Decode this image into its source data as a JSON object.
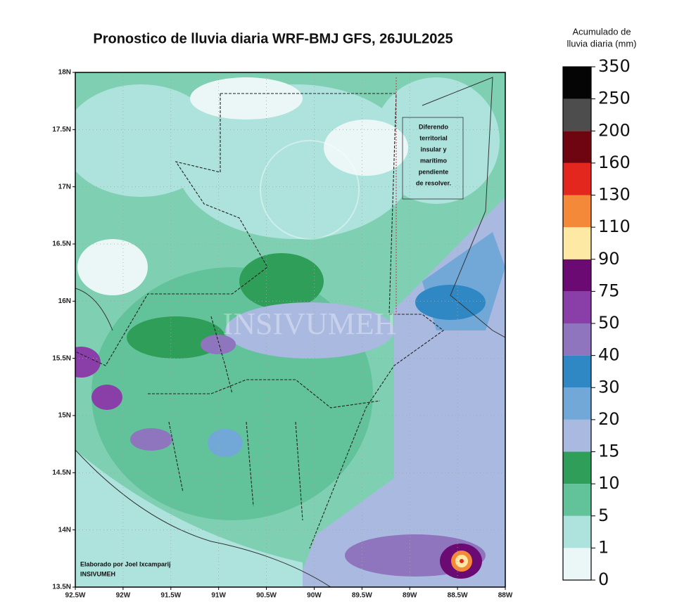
{
  "map": {
    "title": "Pronostico de lluvia diaria WRF-BMJ GFS,  26JUL2025",
    "xlim": [
      -92.5,
      -88
    ],
    "ylim": [
      13.5,
      18
    ],
    "xticks": [
      {
        "value": -92.5,
        "label": "92.5W"
      },
      {
        "value": -92,
        "label": "92W"
      },
      {
        "value": -91.5,
        "label": "91.5W"
      },
      {
        "value": -91,
        "label": "91W"
      },
      {
        "value": -90.5,
        "label": "90.5W"
      },
      {
        "value": -90,
        "label": "90W"
      },
      {
        "value": -89.5,
        "label": "89.5W"
      },
      {
        "value": -89,
        "label": "89W"
      },
      {
        "value": -88.5,
        "label": "88.5W"
      },
      {
        "value": -88,
        "label": "88W"
      }
    ],
    "yticks": [
      {
        "value": 13.5,
        "label": "13.5N"
      },
      {
        "value": 14,
        "label": "14N"
      },
      {
        "value": 14.5,
        "label": "14.5N"
      },
      {
        "value": 15,
        "label": "15N"
      },
      {
        "value": 15.5,
        "label": "15.5N"
      },
      {
        "value": 16,
        "label": "16N"
      },
      {
        "value": 16.5,
        "label": "16.5N"
      },
      {
        "value": 17,
        "label": "17N"
      },
      {
        "value": 17.5,
        "label": "17.5N"
      },
      {
        "value": 18,
        "label": "18N"
      }
    ],
    "grid": true,
    "annotation": [
      "Diferendo",
      "territorial",
      "insular y",
      "marítimo",
      "pendiente",
      "de resolver."
    ],
    "credit": [
      "Elaborado por Joel Ixcamparij",
      "INSIVUMEH"
    ],
    "watermark": "INSIVUMEH",
    "colorbar": {
      "title": [
        "Acumulado de",
        "lluvia diaria (mm)"
      ],
      "levels": [
        0,
        1,
        5,
        10,
        15,
        20,
        30,
        40,
        50,
        75,
        90,
        110,
        130,
        160,
        200,
        250,
        350
      ],
      "colors": [
        "#eaf7f6",
        "#ade3dc",
        "#62c39a",
        "#2f9e58",
        "#a9b9e0",
        "#72a8d8",
        "#2f88c4",
        "#8f74be",
        "#8a3fa8",
        "#6b0a72",
        "#fde9a3",
        "#f5893a",
        "#e3261e",
        "#6e0510",
        "#4d4d4d",
        "#050505"
      ]
    }
  }
}
